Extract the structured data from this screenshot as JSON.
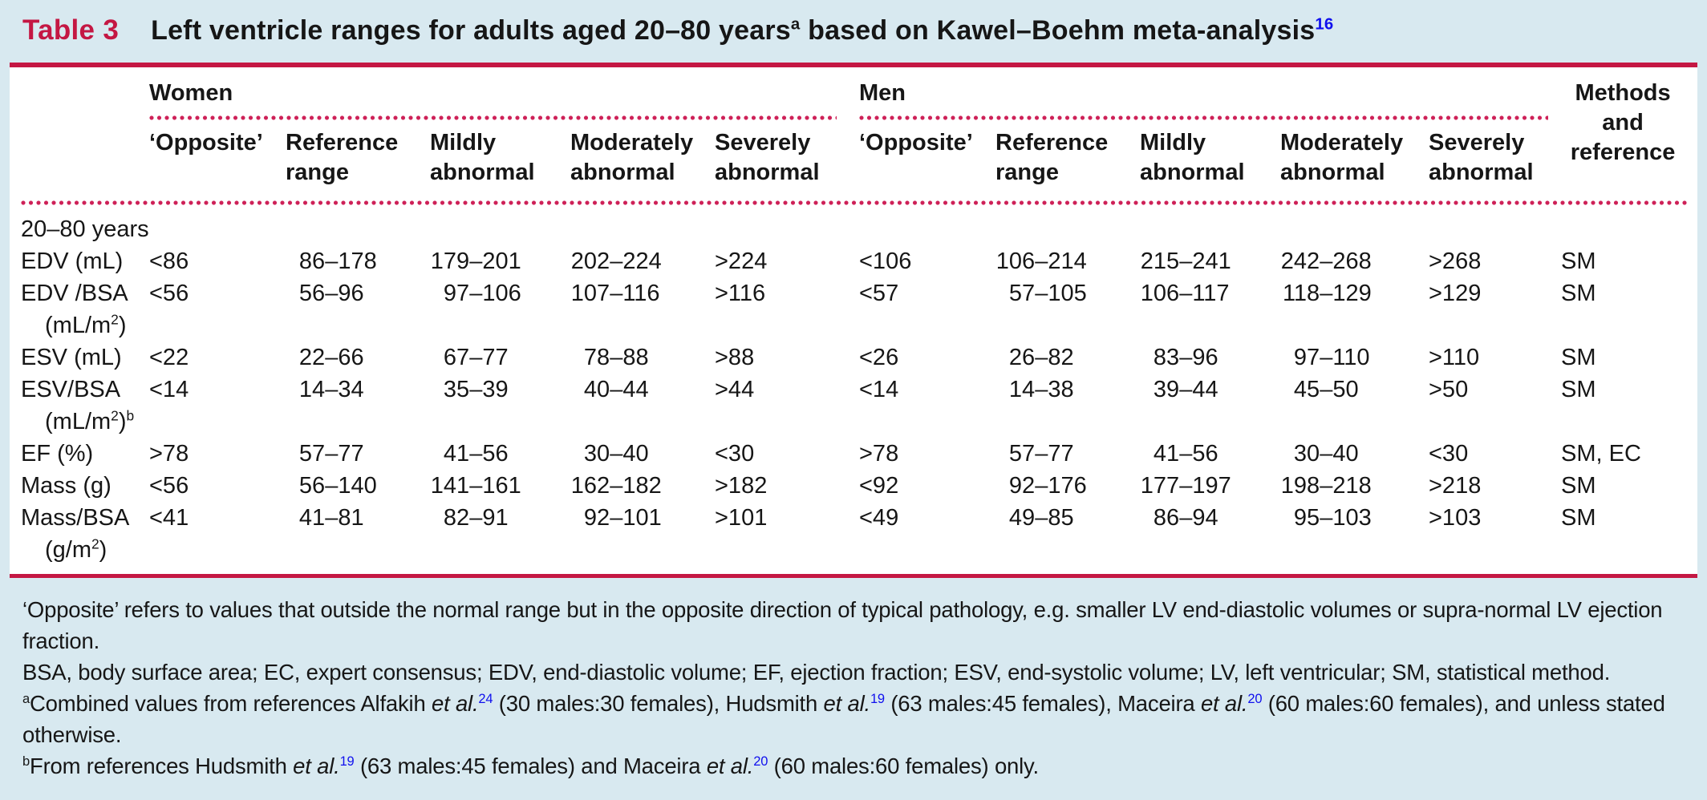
{
  "colors": {
    "page_background": "#d8e9f0",
    "table_background": "#ffffff",
    "accent_red": "#c41743",
    "dotted_red": "#ce2158",
    "citation_blue": "#1010ee",
    "text": "#161616"
  },
  "title": {
    "label": "Table 3",
    "segments": [
      {
        "t": "Left ventricle ranges for adults aged 20–80 years"
      },
      {
        "t": "a",
        "s": "sup"
      },
      {
        "t": " based on Kawel–Boehm meta-analysis"
      },
      {
        "t": "16",
        "s": "supb"
      }
    ]
  },
  "table": {
    "groups": {
      "women": "Women",
      "men": "Men"
    },
    "methods_header": "Methods and reference",
    "columns": [
      "‘Opposite’",
      "Reference range",
      "Mildly abnormal",
      "Moderately abnormal",
      "Severely abnormal"
    ],
    "rows": [
      {
        "section": "20–80 years"
      },
      {
        "label": [
          {
            "t": "EDV (mL)"
          }
        ],
        "women": [
          "<86",
          "86–178",
          "179–201",
          "202–224",
          ">224"
        ],
        "men": [
          "<106",
          "106–214",
          "215–241",
          "242–268",
          ">268"
        ],
        "methods": "SM"
      },
      {
        "label": [
          {
            "t": "EDV /BSA"
          }
        ],
        "unit": [
          {
            "t": "(mL/m"
          },
          {
            "t": "2",
            "s": "sup"
          },
          {
            "t": ")"
          }
        ],
        "women": [
          "<56",
          "56–96",
          "97–106",
          "107–116",
          ">116"
        ],
        "men": [
          "<57",
          "57–105",
          "106–117",
          "118–129",
          ">129"
        ],
        "methods": "SM"
      },
      {
        "label": [
          {
            "t": "ESV (mL)"
          }
        ],
        "women": [
          "<22",
          "22–66",
          "67–77",
          "78–88",
          ">88"
        ],
        "men": [
          "<26",
          "26–82",
          "83–96",
          "97–110",
          ">110"
        ],
        "methods": "SM"
      },
      {
        "label": [
          {
            "t": "ESV/BSA"
          }
        ],
        "unit": [
          {
            "t": "(mL/m"
          },
          {
            "t": "2",
            "s": "sup"
          },
          {
            "t": ")"
          },
          {
            "t": "b",
            "s": "sup"
          }
        ],
        "women": [
          "<14",
          "14–34",
          "35–39",
          "40–44",
          ">44"
        ],
        "men": [
          "<14",
          "14–38",
          "39–44",
          "45–50",
          ">50"
        ],
        "methods": "SM"
      },
      {
        "label": [
          {
            "t": "EF (%)"
          }
        ],
        "women": [
          ">78",
          "57–77",
          "41–56",
          "30–40",
          "<30"
        ],
        "men": [
          ">78",
          "57–77",
          "41–56",
          "30–40",
          "<30"
        ],
        "methods": "SM, EC"
      },
      {
        "label": [
          {
            "t": "Mass (g)"
          }
        ],
        "women": [
          "<56",
          "56–140",
          "141–161",
          "162–182",
          ">182"
        ],
        "men": [
          "<92",
          "92–176",
          "177–197",
          "198–218",
          ">218"
        ],
        "methods": "SM"
      },
      {
        "label": [
          {
            "t": "Mass/BSA"
          }
        ],
        "unit": [
          {
            "t": "(g/m"
          },
          {
            "t": "2",
            "s": "sup"
          },
          {
            "t": ")"
          }
        ],
        "women": [
          "<41",
          "41–81",
          "82–91",
          "92–101",
          ">101"
        ],
        "men": [
          "<49",
          "49–85",
          "86–94",
          "95–103",
          ">103"
        ],
        "methods": "SM"
      }
    ]
  },
  "footnotes": [
    [
      {
        "t": "‘Opposite’ refers to values that outside the normal range but in the opposite direction of typical pathology, e.g. smaller LV end-diastolic volumes or supra-normal LV ejection fraction."
      }
    ],
    [
      {
        "t": "BSA, body surface area; EC, expert consensus; EDV, end-diastolic volume; EF, ejection fraction; ESV, end-systolic volume; LV, left ventricular; SM, statistical method."
      }
    ],
    [
      {
        "t": "a",
        "s": "sup"
      },
      {
        "t": "Combined values from references Alfakih "
      },
      {
        "t": "et al.",
        "s": "i"
      },
      {
        "t": "24",
        "s": "supb"
      },
      {
        "t": " (30 males:30 females), Hudsmith "
      },
      {
        "t": "et al.",
        "s": "i"
      },
      {
        "t": "19",
        "s": "supb"
      },
      {
        "t": " (63 males:45 females), Maceira "
      },
      {
        "t": "et al.",
        "s": "i"
      },
      {
        "t": "20",
        "s": "supb"
      },
      {
        "t": " (60 males:60 females), and unless stated otherwise."
      }
    ],
    [
      {
        "t": "b",
        "s": "sup"
      },
      {
        "t": "From references Hudsmith "
      },
      {
        "t": "et al.",
        "s": "i"
      },
      {
        "t": "19",
        "s": "supb"
      },
      {
        "t": " (63 males:45 females) and Maceira "
      },
      {
        "t": "et al.",
        "s": "i"
      },
      {
        "t": "20",
        "s": "supb"
      },
      {
        "t": " (60 males:60 females) only."
      }
    ]
  ]
}
